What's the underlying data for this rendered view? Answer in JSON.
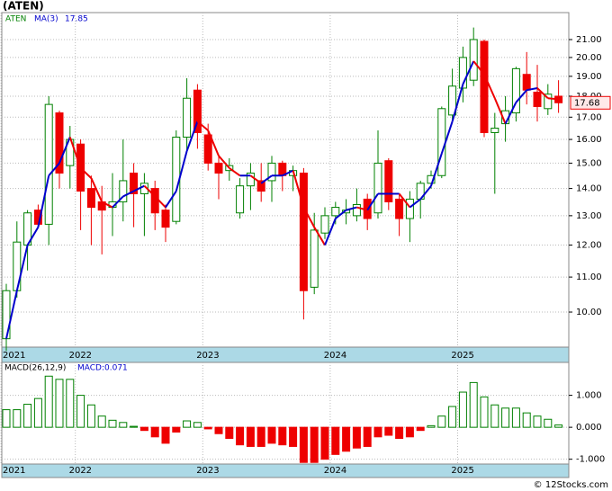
{
  "chart_data": [
    {
      "type": "candlestick",
      "title": "(ATEN)",
      "symbol": "ATEN",
      "ma_name": "MA(3)",
      "ma_value": 17.85,
      "last_price": 17.68,
      "log_scale": true,
      "grid": true,
      "categories": [
        "2021",
        null,
        null,
        null,
        null,
        null,
        null,
        "2022",
        null,
        null,
        null,
        null,
        null,
        null,
        null,
        null,
        null,
        null,
        null,
        "2023",
        null,
        null,
        null,
        null,
        null,
        null,
        null,
        null,
        null,
        null,
        null,
        "2024",
        null,
        null,
        null,
        null,
        null,
        null,
        null,
        null,
        null,
        null,
        null,
        "2025",
        null,
        null,
        null,
        null,
        null,
        null,
        null,
        null,
        null
      ],
      "open": [
        9.3,
        10.6,
        12.0,
        13.2,
        12.7,
        17.2,
        14.9,
        15.8,
        14.0,
        13.5,
        13.3,
        13.5,
        14.6,
        13.8,
        14.0,
        13.2,
        12.8,
        16.1,
        18.3,
        16.2,
        15.0,
        14.7,
        13.1,
        14.1,
        14.3,
        14.3,
        15.0,
        14.5,
        14.6,
        10.7,
        12.4,
        13.0,
        13.1,
        13.0,
        13.6,
        13.1,
        15.1,
        13.6,
        12.9,
        13.6,
        14.2,
        14.5,
        17.1,
        18.4,
        18.8,
        20.9,
        16.3,
        16.7,
        17.2,
        19.1,
        18.2,
        17.4,
        18.0
      ],
      "high": [
        10.8,
        12.8,
        13.2,
        13.4,
        18.0,
        17.3,
        16.6,
        16.0,
        14.5,
        14.1,
        14.6,
        16.0,
        15.0,
        14.6,
        14.3,
        13.4,
        16.4,
        18.9,
        18.6,
        16.7,
        15.3,
        15.2,
        14.4,
        15.0,
        15.0,
        15.3,
        15.1,
        14.9,
        14.8,
        13.1,
        13.3,
        13.5,
        13.6,
        14.0,
        13.8,
        16.4,
        15.2,
        13.8,
        13.9,
        14.3,
        14.7,
        17.5,
        19.4,
        20.6,
        21.7,
        21.0,
        17.2,
        18.0,
        19.5,
        20.3,
        19.6,
        18.6,
        18.8
      ],
      "low": [
        9.0,
        10.4,
        11.2,
        12.6,
        12.0,
        14.0,
        14.0,
        12.5,
        12.0,
        11.7,
        12.3,
        12.8,
        12.6,
        12.3,
        12.5,
        12.1,
        12.7,
        15.5,
        15.6,
        14.7,
        13.6,
        14.3,
        12.9,
        13.2,
        13.5,
        13.5,
        13.9,
        13.9,
        9.8,
        10.5,
        12.2,
        12.7,
        12.7,
        12.8,
        12.5,
        12.9,
        13.2,
        12.3,
        12.1,
        12.9,
        14.0,
        14.4,
        16.9,
        17.7,
        18.5,
        16.1,
        13.8,
        15.9,
        16.8,
        17.6,
        16.8,
        17.1,
        17.2
      ],
      "close": [
        10.6,
        12.1,
        13.1,
        12.7,
        17.6,
        14.6,
        16.0,
        13.9,
        13.3,
        13.2,
        13.5,
        14.3,
        13.8,
        14.2,
        13.1,
        12.6,
        16.1,
        17.9,
        16.3,
        15.0,
        14.6,
        14.9,
        14.1,
        14.6,
        13.9,
        15.0,
        14.5,
        14.7,
        10.6,
        12.5,
        13.0,
        13.3,
        13.2,
        13.4,
        12.9,
        15.0,
        13.5,
        12.9,
        13.6,
        14.2,
        14.5,
        17.4,
        18.5,
        20.0,
        21.0,
        16.3,
        16.5,
        17.3,
        19.4,
        18.3,
        17.5,
        18.1,
        17.68
      ],
      "ma": [
        9.3,
        10.6,
        12.0,
        12.6,
        14.5,
        15.0,
        16.1,
        14.8,
        14.4,
        13.5,
        13.3,
        13.7,
        13.9,
        14.1,
        13.7,
        13.3,
        13.9,
        15.5,
        16.8,
        16.4,
        15.3,
        14.8,
        14.5,
        14.5,
        14.2,
        14.5,
        14.5,
        14.7,
        13.3,
        12.6,
        12.0,
        12.9,
        13.2,
        13.3,
        13.2,
        13.8,
        13.8,
        13.8,
        13.3,
        13.6,
        14.1,
        15.4,
        16.8,
        18.6,
        19.8,
        19.1,
        17.9,
        16.7,
        17.7,
        18.3,
        18.4,
        17.9,
        17.85
      ],
      "up_color": "#008000",
      "down_color": "#ee0000",
      "ma_up_color": "#0000cc",
      "ma_down_color": "#ee0000",
      "ylim": [
        9.09,
        22.6
      ],
      "yticks": [
        {
          "value": 10,
          "label": "10.00"
        },
        {
          "value": 11,
          "label": "11.00"
        },
        {
          "value": 12,
          "label": "12.00"
        },
        {
          "value": 13,
          "label": "13.00"
        },
        {
          "value": 14,
          "label": "14.00"
        },
        {
          "value": 15,
          "label": "15.00"
        },
        {
          "value": 16,
          "label": "16.00"
        },
        {
          "value": 17,
          "label": "17.00"
        },
        {
          "value": 18,
          "label": "18.00"
        },
        {
          "value": 19,
          "label": "19.00"
        },
        {
          "value": 20,
          "label": "20.00"
        },
        {
          "value": 21,
          "label": "21.00"
        }
      ]
    },
    {
      "type": "bar",
      "title": "MACD(26,12,9)",
      "value_name": "MACD:",
      "value": 0.071,
      "grid": true,
      "categories": [
        "2021",
        null,
        null,
        null,
        null,
        null,
        null,
        "2022",
        null,
        null,
        null,
        null,
        null,
        null,
        null,
        null,
        null,
        null,
        null,
        "2023",
        null,
        null,
        null,
        null,
        null,
        null,
        null,
        null,
        null,
        null,
        null,
        "2024",
        null,
        null,
        null,
        null,
        null,
        null,
        null,
        null,
        null,
        null,
        null,
        "2025",
        null,
        null,
        null,
        null,
        null,
        null,
        null,
        null,
        null
      ],
      "values": [
        0.55,
        0.55,
        0.72,
        0.9,
        1.6,
        1.5,
        1.5,
        1.0,
        0.7,
        0.35,
        0.22,
        0.15,
        0.03,
        -0.1,
        -0.3,
        -0.5,
        -0.15,
        0.2,
        0.15,
        -0.05,
        -0.2,
        -0.35,
        -0.55,
        -0.6,
        -0.6,
        -0.5,
        -0.55,
        -0.6,
        -1.1,
        -1.1,
        -1.0,
        -0.85,
        -0.75,
        -0.65,
        -0.6,
        -0.3,
        -0.25,
        -0.35,
        -0.3,
        -0.1,
        0.05,
        0.35,
        0.65,
        1.1,
        1.4,
        0.95,
        0.7,
        0.6,
        0.6,
        0.45,
        0.35,
        0.25,
        0.071
      ],
      "up_color": "#008000",
      "down_color": "#ee0000",
      "ylim": [
        -1.15,
        2.03
      ],
      "yticks": [
        {
          "value": -1,
          "label": "-1.000"
        },
        {
          "value": 0,
          "label": "0.000"
        },
        {
          "value": 1,
          "label": "1.000"
        }
      ]
    }
  ],
  "footer": "© 12Stocks.com"
}
